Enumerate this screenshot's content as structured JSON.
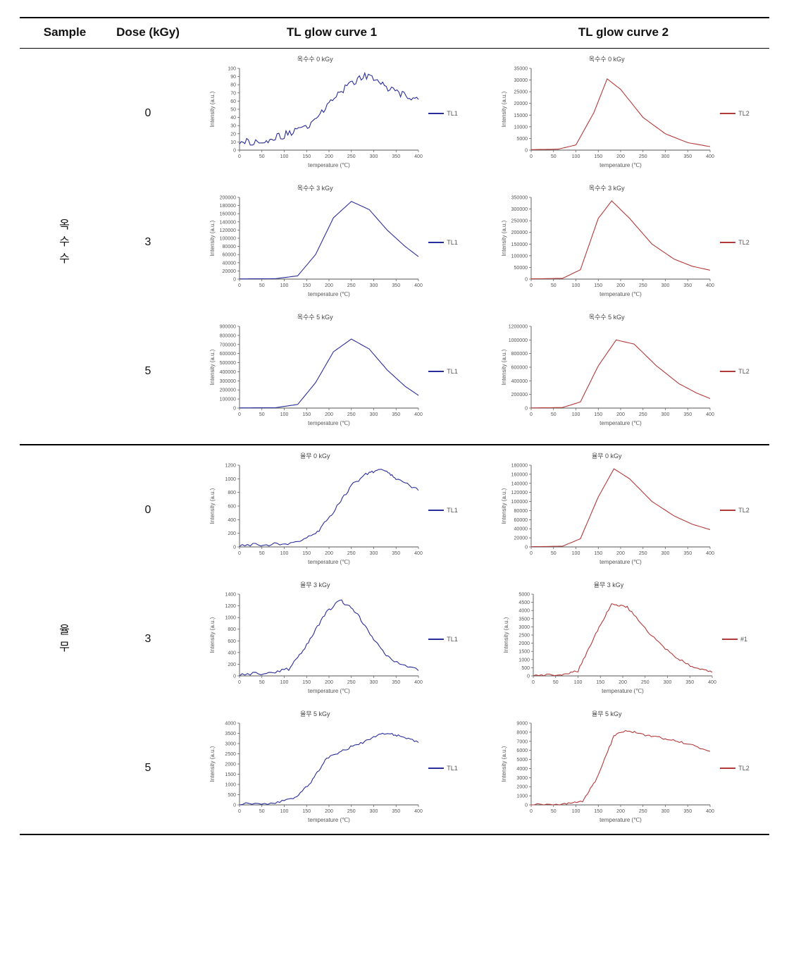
{
  "columns": {
    "sample": "Sample",
    "dose": "Dose\n(kGy)",
    "tl1": "TL glow curve 1",
    "tl2": "TL glow curve 2"
  },
  "axis": {
    "x": "temperature (℃)",
    "y": "Intensity (a.u.)",
    "x_ticks": [
      0,
      50,
      100,
      150,
      200,
      250,
      300,
      350,
      400
    ]
  },
  "colors": {
    "tl1": "#2a2e9a",
    "tl2": "#b23a3a",
    "axis": "#555555",
    "background": "#ffffff"
  },
  "samples": [
    {
      "name": "옥\n수\n수",
      "rows": [
        {
          "dose": "0",
          "tl1": {
            "legend": "TL1",
            "title": "옥수수 0 kGy",
            "color": "#2a2e9a",
            "ymax": 100,
            "y_ticks": [
              0,
              10,
              20,
              30,
              40,
              50,
              60,
              70,
              80,
              90,
              100
            ],
            "noise": 9,
            "curve": [
              [
                0,
                12
              ],
              [
                40,
                8
              ],
              [
                80,
                15
              ],
              [
                120,
                22
              ],
              [
                160,
                30
              ],
              [
                200,
                55
              ],
              [
                240,
                78
              ],
              [
                280,
                92
              ],
              [
                320,
                80
              ],
              [
                360,
                68
              ],
              [
                400,
                62
              ]
            ]
          },
          "tl2": {
            "legend": "TL2",
            "title": "옥수수 0 kGy",
            "color": "#b23a3a",
            "ymax": 35000,
            "y_ticks": [
              0,
              5000,
              10000,
              15000,
              20000,
              25000,
              30000,
              35000
            ],
            "noise": 0,
            "curve": [
              [
                0,
                200
              ],
              [
                60,
                400
              ],
              [
                100,
                2200
              ],
              [
                140,
                16000
              ],
              [
                170,
                30500
              ],
              [
                200,
                26000
              ],
              [
                250,
                14000
              ],
              [
                300,
                7000
              ],
              [
                350,
                3200
              ],
              [
                400,
                1500
              ]
            ]
          }
        },
        {
          "dose": "3",
          "tl1": {
            "legend": "TL1",
            "title": "옥수수 3 kGy",
            "color": "#2a2e9a",
            "ymax": 200000,
            "y_ticks": [
              0,
              20000,
              40000,
              60000,
              80000,
              100000,
              120000,
              140000,
              160000,
              180000,
              200000
            ],
            "noise": 0,
            "curve": [
              [
                0,
                500
              ],
              [
                80,
                1000
              ],
              [
                130,
                8000
              ],
              [
                170,
                60000
              ],
              [
                210,
                150000
              ],
              [
                250,
                190000
              ],
              [
                290,
                170000
              ],
              [
                330,
                120000
              ],
              [
                370,
                80000
              ],
              [
                400,
                55000
              ]
            ]
          },
          "tl2": {
            "legend": "TL2",
            "title": "옥수수 3 kGy",
            "color": "#b23a3a",
            "ymax": 350000,
            "y_ticks": [
              0,
              50000,
              100000,
              150000,
              200000,
              250000,
              300000,
              350000
            ],
            "noise": 0,
            "curve": [
              [
                0,
                1000
              ],
              [
                70,
                3000
              ],
              [
                110,
                40000
              ],
              [
                150,
                260000
              ],
              [
                180,
                335000
              ],
              [
                220,
                260000
              ],
              [
                270,
                150000
              ],
              [
                320,
                85000
              ],
              [
                360,
                55000
              ],
              [
                400,
                38000
              ]
            ]
          }
        },
        {
          "dose": "5",
          "tl1": {
            "legend": "TL1",
            "title": "옥수수 5 kGy",
            "color": "#2a2e9a",
            "ymax": 900000,
            "y_ticks": [
              0,
              100000,
              200000,
              300000,
              400000,
              500000,
              600000,
              700000,
              800000,
              900000
            ],
            "noise": 0,
            "curve": [
              [
                0,
                2000
              ],
              [
                80,
                4000
              ],
              [
                130,
                40000
              ],
              [
                170,
                280000
              ],
              [
                210,
                620000
              ],
              [
                250,
                760000
              ],
              [
                290,
                650000
              ],
              [
                330,
                420000
              ],
              [
                370,
                240000
              ],
              [
                400,
                140000
              ]
            ]
          },
          "tl2": {
            "legend": "TL2",
            "title": "옥수수 5 kGy",
            "color": "#b23a3a",
            "ymax": 1200000,
            "y_ticks": [
              0,
              200000,
              400000,
              600000,
              800000,
              1000000,
              1200000
            ],
            "noise": 0,
            "curve": [
              [
                0,
                2000
              ],
              [
                70,
                8000
              ],
              [
                110,
                90000
              ],
              [
                150,
                620000
              ],
              [
                190,
                1000000
              ],
              [
                230,
                940000
              ],
              [
                280,
                620000
              ],
              [
                330,
                360000
              ],
              [
                370,
                220000
              ],
              [
                400,
                140000
              ]
            ]
          }
        }
      ]
    },
    {
      "name": "율\n무",
      "rows": [
        {
          "dose": "0",
          "tl1": {
            "legend": "TL1",
            "title": "율무 0 kGy",
            "color": "#2a2e9a",
            "ymax": 1200,
            "y_ticks": [
              0,
              200,
              400,
              600,
              800,
              1000,
              1200
            ],
            "noise": 45,
            "curve": [
              [
                0,
                30
              ],
              [
                60,
                30
              ],
              [
                120,
                60
              ],
              [
                170,
                180
              ],
              [
                210,
                520
              ],
              [
                250,
                900
              ],
              [
                290,
                1100
              ],
              [
                320,
                1130
              ],
              [
                350,
                1000
              ],
              [
                400,
                830
              ]
            ]
          },
          "tl2": {
            "legend": "TL2",
            "title": "율무 0 kGy",
            "color": "#b23a3a",
            "ymax": 180000,
            "y_ticks": [
              0,
              20000,
              40000,
              60000,
              80000,
              100000,
              120000,
              140000,
              160000,
              180000
            ],
            "noise": 0,
            "curve": [
              [
                0,
                500
              ],
              [
                70,
                1500
              ],
              [
                110,
                18000
              ],
              [
                150,
                110000
              ],
              [
                185,
                172000
              ],
              [
                220,
                150000
              ],
              [
                270,
                100000
              ],
              [
                320,
                68000
              ],
              [
                360,
                50000
              ],
              [
                400,
                38000
              ]
            ]
          }
        },
        {
          "dose": "3",
          "tl1": {
            "legend": "TL1",
            "title": "율무 3 kGy",
            "color": "#2a2e9a",
            "ymax": 1400,
            "y_ticks": [
              0,
              200,
              400,
              600,
              800,
              1000,
              1200,
              1400
            ],
            "noise": 55,
            "curve": [
              [
                0,
                30
              ],
              [
                60,
                40
              ],
              [
                110,
                120
              ],
              [
                150,
                520
              ],
              [
                190,
                1050
              ],
              [
                225,
                1300
              ],
              [
                260,
                1100
              ],
              [
                300,
                620
              ],
              [
                340,
                260
              ],
              [
                400,
                90
              ]
            ]
          },
          "tl2": {
            "legend": "#1",
            "title": "율무 3 kGy",
            "color": "#b23a3a",
            "ymax": 5000,
            "y_ticks": [
              0,
              500,
              1000,
              1500,
              2000,
              2500,
              3000,
              3500,
              4000,
              4500,
              5000
            ],
            "noise": 120,
            "curve": [
              [
                0,
                50
              ],
              [
                60,
                60
              ],
              [
                100,
                300
              ],
              [
                140,
                2600
              ],
              [
                175,
                4400
              ],
              [
                210,
                4200
              ],
              [
                260,
                2600
              ],
              [
                310,
                1300
              ],
              [
                355,
                550
              ],
              [
                400,
                220
              ]
            ]
          }
        },
        {
          "dose": "5",
          "tl1": {
            "legend": "TL1",
            "title": "율무 5 kGy",
            "color": "#2a2e9a",
            "ymax": 4000,
            "y_ticks": [
              0,
              500,
              1000,
              1500,
              2000,
              2500,
              3000,
              3500,
              4000
            ],
            "noise": 120,
            "curve": [
              [
                0,
                60
              ],
              [
                70,
                80
              ],
              [
                120,
                280
              ],
              [
                160,
                1100
              ],
              [
                195,
                2300
              ],
              [
                235,
                2700
              ],
              [
                280,
                3100
              ],
              [
                320,
                3500
              ],
              [
                355,
                3400
              ],
              [
                400,
                3050
              ]
            ]
          },
          "tl2": {
            "legend": "TL2",
            "title": "율무 5 kGy",
            "color": "#b23a3a",
            "ymax": 9000,
            "y_ticks": [
              0,
              1000,
              2000,
              3000,
              4000,
              5000,
              6000,
              7000,
              8000,
              9000
            ],
            "noise": 240,
            "curve": [
              [
                0,
                60
              ],
              [
                70,
                80
              ],
              [
                115,
                350
              ],
              [
                150,
                3200
              ],
              [
                185,
                7600
              ],
              [
                215,
                8200
              ],
              [
                255,
                7700
              ],
              [
                300,
                7300
              ],
              [
                345,
                6800
              ],
              [
                400,
                5900
              ]
            ]
          }
        }
      ]
    }
  ]
}
